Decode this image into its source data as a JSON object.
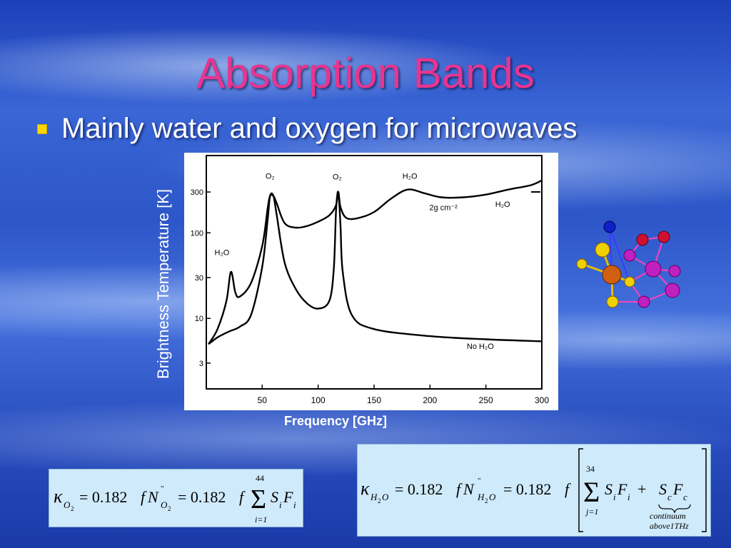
{
  "slide": {
    "title": "Absorption Bands",
    "bullet": "Mainly water and oxygen for microwaves",
    "colors": {
      "title": "#e8358f",
      "bullet_marker": "#ffd700",
      "equation_bg": "#cfeafb"
    },
    "molecule_icon": "molecule-graphic"
  },
  "chart_data": {
    "type": "line",
    "xlabel": "Frequency [GHz]",
    "ylabel": "Brightness Temperature [K]",
    "y_scale": "log",
    "xlim": [
      0,
      300
    ],
    "ylim": [
      1.5,
      800
    ],
    "x_ticks": [
      50,
      100,
      150,
      200,
      250,
      300
    ],
    "y_ticks": [
      3,
      10,
      30,
      100,
      300
    ],
    "series": [
      {
        "name": "2g cm⁻² H₂O",
        "x": [
          2,
          10,
          18,
          22,
          26,
          30,
          40,
          50,
          55,
          57,
          60,
          63,
          70,
          80,
          90,
          100,
          110,
          116,
          118,
          120,
          125,
          135,
          150,
          165,
          180,
          195,
          210,
          230,
          250,
          270,
          290,
          300
        ],
        "y": [
          5,
          7.5,
          16,
          35,
          20,
          18,
          26,
          70,
          200,
          270,
          270,
          220,
          130,
          115,
          120,
          135,
          160,
          210,
          300,
          200,
          150,
          148,
          175,
          250,
          320,
          290,
          260,
          260,
          280,
          320,
          360,
          410
        ]
      },
      {
        "name": "No H₂O",
        "x": [
          2,
          10,
          20,
          30,
          40,
          50,
          55,
          57,
          60,
          63,
          70,
          80,
          90,
          100,
          110,
          114,
          116,
          118,
          120,
          122,
          130,
          150,
          200,
          250,
          300
        ],
        "y": [
          5,
          6,
          7,
          8,
          11,
          40,
          150,
          270,
          270,
          160,
          45,
          22,
          15,
          13,
          16,
          38,
          180,
          300,
          120,
          35,
          11,
          7.5,
          6.2,
          5.7,
          5.4
        ]
      }
    ],
    "annotations": [
      {
        "text": "O₂",
        "x": 57,
        "y": 430
      },
      {
        "text": "O₂",
        "x": 117,
        "y": 420
      },
      {
        "text": "H₂O",
        "x": 182,
        "y": 430
      },
      {
        "text": "H₂O",
        "x": 14,
        "y": 55
      },
      {
        "text": "2g cm⁻²",
        "x": 212,
        "y": 185
      },
      {
        "text": "H₂O",
        "x": 265,
        "y": 200
      },
      {
        "text": "No H₂O",
        "x": 245,
        "y": 4.4
      }
    ]
  },
  "equations": {
    "eq1": {
      "kappa": "κ",
      "kappa_sub": "O",
      "kappa_subsub": "2",
      "p1": "= 0.182",
      "f": "f",
      "N": "N",
      "N_sup": "\"",
      "N_sub": "O",
      "N_subsub": "2",
      "p2": "= 0.182",
      "f2": "f",
      "sum_top": "44",
      "sum_bottom": "i=1",
      "S": "S",
      "S_sub": "i",
      "F": "F",
      "F_sub": "i"
    },
    "eq2": {
      "kappa": "κ",
      "kappa_sub": "H",
      "kappa_sub2": "2",
      "kappa_sub3": "O",
      "p1": "= 0.182",
      "f": "f",
      "N": "N",
      "N_sup": "\"",
      "N_sub": "H",
      "N_sub2": "2",
      "N_sub3": "O",
      "p2": "= 0.182",
      "f2": "f",
      "sum_top": "34",
      "sum_bottom": "j=1",
      "S": "S",
      "S_sub": "i",
      "F": "F",
      "F_sub": "i",
      "plus": "+",
      "Sc": "S",
      "Sc_sub": "c",
      "Fc": "F",
      "Fc_sub": "c",
      "note1": "continuum",
      "note2": "above1THz"
    }
  }
}
